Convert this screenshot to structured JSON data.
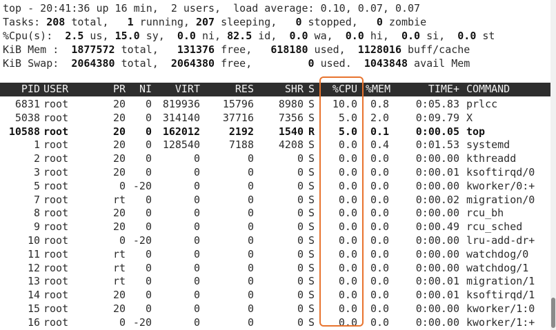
{
  "summary": {
    "uptime_line": "top - 20:41:36 up 16 min,  2 users,  load average: 0.10, 0.07, 0.07",
    "tasks": {
      "prefix": "Tasks: ",
      "total": "208",
      "total_label": " total,   ",
      "running": "1",
      "running_label": " running, ",
      "sleeping": "207",
      "sleeping_label": " sleeping,   ",
      "stopped": "0",
      "stopped_label": " stopped,   ",
      "zombie": "0",
      "zombie_label": " zombie"
    },
    "cpu": {
      "prefix": "%Cpu(s):  ",
      "us": "2.5",
      "us_label": " us, ",
      "sy": "15.0",
      "sy_label": " sy,  ",
      "ni": "0.0",
      "ni_label": " ni, ",
      "id": "82.5",
      "id_label": " id,  ",
      "wa": "0.0",
      "wa_label": " wa,  ",
      "hi": "0.0",
      "hi_label": " hi,  ",
      "si": "0.0",
      "si_label": " si,  ",
      "st": "0.0",
      "st_label": " st"
    },
    "mem": {
      "prefix": "KiB Mem :  ",
      "total": "1877572",
      "total_label": " total,   ",
      "free": "131376",
      "free_label": " free,   ",
      "used": "618180",
      "used_label": " used,  ",
      "buff": "1128016",
      "buff_label": " buff/cache"
    },
    "swap": {
      "prefix": "KiB Swap:  ",
      "total": "2064380",
      "total_label": " total,  ",
      "free": "2064380",
      "free_label": " free,         ",
      "used": "0",
      "used_label": " used.  ",
      "avail": "1043848",
      "avail_label": " avail Mem"
    }
  },
  "columns": [
    "PID",
    "USER",
    "PR",
    "NI",
    "VIRT",
    "RES",
    "SHR",
    "S",
    "%CPU",
    "%MEM",
    "TIME+",
    "COMMAND"
  ],
  "processes": [
    [
      "6831",
      "root",
      "20",
      "0",
      "819936",
      "15796",
      "8980",
      "S",
      "10.0",
      "0.8",
      "0:05.83",
      "prlcc"
    ],
    [
      "5038",
      "root",
      "20",
      "0",
      "314140",
      "37716",
      "7356",
      "S",
      "5.0",
      "2.0",
      "0:09.79",
      "X"
    ],
    [
      "10588",
      "root",
      "20",
      "0",
      "162012",
      "2192",
      "1540",
      "R",
      "5.0",
      "0.1",
      "0:00.05",
      "top"
    ],
    [
      "1",
      "root",
      "20",
      "0",
      "128540",
      "7188",
      "4208",
      "S",
      "0.0",
      "0.4",
      "0:01.53",
      "systemd"
    ],
    [
      "2",
      "root",
      "20",
      "0",
      "0",
      "0",
      "0",
      "S",
      "0.0",
      "0.0",
      "0:00.00",
      "kthreadd"
    ],
    [
      "3",
      "root",
      "20",
      "0",
      "0",
      "0",
      "0",
      "S",
      "0.0",
      "0.0",
      "0:00.01",
      "ksoftirqd/0"
    ],
    [
      "5",
      "root",
      "0",
      "-20",
      "0",
      "0",
      "0",
      "S",
      "0.0",
      "0.0",
      "0:00.00",
      "kworker/0:+"
    ],
    [
      "7",
      "root",
      "rt",
      "0",
      "0",
      "0",
      "0",
      "S",
      "0.0",
      "0.0",
      "0:00.02",
      "migration/0"
    ],
    [
      "8",
      "root",
      "20",
      "0",
      "0",
      "0",
      "0",
      "S",
      "0.0",
      "0.0",
      "0:00.00",
      "rcu_bh"
    ],
    [
      "9",
      "root",
      "20",
      "0",
      "0",
      "0",
      "0",
      "S",
      "0.0",
      "0.0",
      "0:00.49",
      "rcu_sched"
    ],
    [
      "10",
      "root",
      "0",
      "-20",
      "0",
      "0",
      "0",
      "S",
      "0.0",
      "0.0",
      "0:00.00",
      "lru-add-dr+"
    ],
    [
      "11",
      "root",
      "rt",
      "0",
      "0",
      "0",
      "0",
      "S",
      "0.0",
      "0.0",
      "0:00.00",
      "watchdog/0"
    ],
    [
      "12",
      "root",
      "rt",
      "0",
      "0",
      "0",
      "0",
      "S",
      "0.0",
      "0.0",
      "0:00.00",
      "watchdog/1"
    ],
    [
      "13",
      "root",
      "rt",
      "0",
      "0",
      "0",
      "0",
      "S",
      "0.0",
      "0.0",
      "0:00.01",
      "migration/1"
    ],
    [
      "14",
      "root",
      "20",
      "0",
      "0",
      "0",
      "0",
      "S",
      "0.0",
      "0.0",
      "0:00.01",
      "ksoftirqd/1"
    ],
    [
      "15",
      "root",
      "20",
      "0",
      "0",
      "0",
      "0",
      "S",
      "0.0",
      "0.0",
      "0:00.00",
      "kworker/1:0"
    ],
    [
      "16",
      "root",
      "0",
      "-20",
      "0",
      "0",
      "0",
      "S",
      "0.0",
      "0.0",
      "0:00.00",
      "kworker/1:+"
    ]
  ],
  "highlighted_column": "%CPU",
  "colors": {
    "highlight_border": "#e8732d",
    "header_background": "#2e2e2e",
    "header_text": "#f2f2f2"
  }
}
